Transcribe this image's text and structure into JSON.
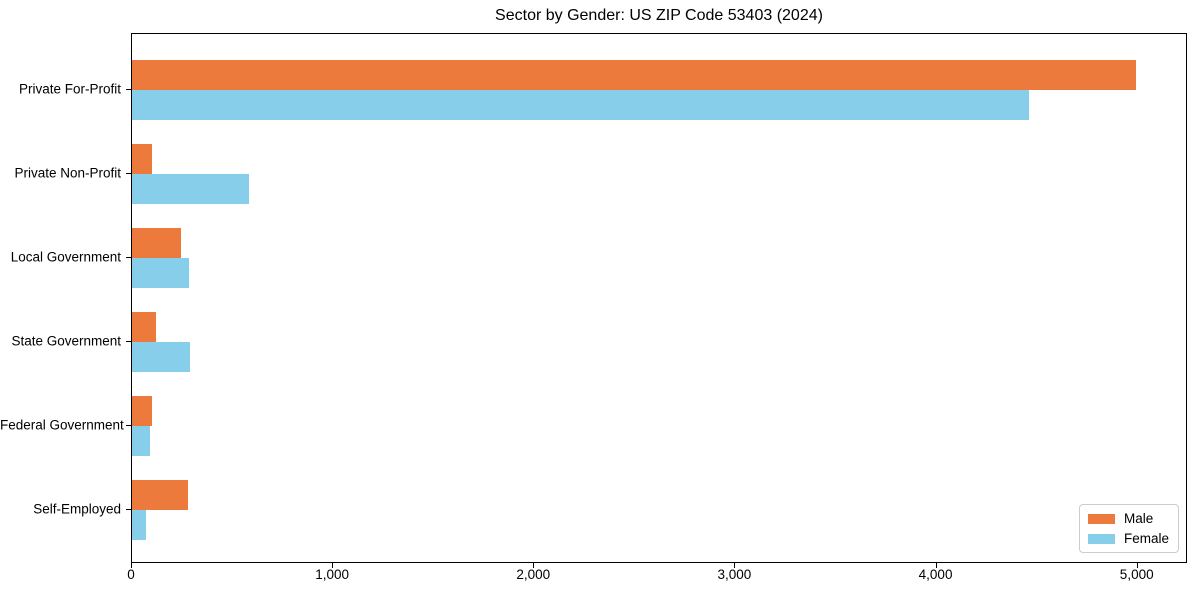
{
  "title": "Sector by Gender: US ZIP Code 53403 (2024)",
  "colors": {
    "male": "#EC7A3C",
    "female": "#87CEEB",
    "axis": "#000000",
    "legend_border": "#cccccc",
    "background": "#ffffff"
  },
  "legend": {
    "items": [
      {
        "label": "Male",
        "color": "#EC7A3C"
      },
      {
        "label": "Female",
        "color": "#87CEEB"
      }
    ],
    "position": "lower right"
  },
  "chart_data": {
    "type": "bar",
    "orientation": "horizontal",
    "title": "Sector by Gender: US ZIP Code 53403 (2024)",
    "categories": [
      "Private For-Profit",
      "Private Non-Profit",
      "Local Government",
      "State Government",
      "Federal Government",
      "Self-Employed"
    ],
    "series": [
      {
        "name": "Male",
        "color": "#EC7A3C",
        "values": [
          5000,
          100,
          245,
          120,
          100,
          280
        ]
      },
      {
        "name": "Female",
        "color": "#87CEEB",
        "values": [
          4470,
          585,
          285,
          290,
          90,
          70
        ]
      }
    ],
    "xlabel": "",
    "ylabel": "",
    "xlim": [
      0,
      5250
    ],
    "x_ticks": [
      0,
      1000,
      2000,
      3000,
      4000,
      5000
    ],
    "x_tick_labels": [
      "0",
      "1,000",
      "2,000",
      "3,000",
      "4,000",
      "5,000"
    ],
    "grid": false,
    "legend_position": "lower right"
  }
}
